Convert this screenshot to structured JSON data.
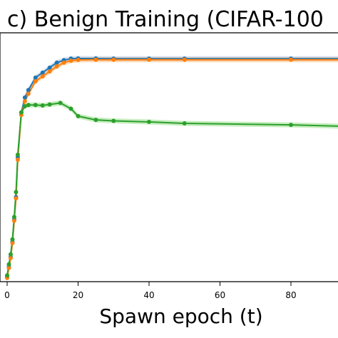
{
  "chart_data": {
    "type": "line",
    "title": "c) Benign Training (CIFAR-100",
    "xlabel": "Spawn epoch (t)",
    "ylabel": "",
    "xlim": [
      -1.5,
      96
    ],
    "ylim": [
      0,
      100
    ],
    "grid": false,
    "x_ticks": [
      0,
      20,
      40,
      60,
      80
    ],
    "series": [
      {
        "color": "#1f77b4",
        "band_color": "#aec7e8",
        "x": [
          0,
          0.5,
          1,
          1.5,
          2,
          2.5,
          3,
          4,
          5,
          6,
          8,
          10,
          12,
          14,
          16,
          18,
          20,
          25,
          30,
          40,
          50,
          80,
          96
        ],
        "y": [
          2,
          6,
          10,
          16,
          25,
          34,
          50,
          68,
          74,
          77,
          82,
          84,
          86,
          88,
          89,
          89.6,
          89.7,
          89.7,
          89.6,
          89.6,
          89.6,
          89.6,
          89.6
        ]
      },
      {
        "color": "#ff7f0e",
        "band_color": "#ffbb78",
        "x": [
          0,
          0.5,
          1,
          1.5,
          2,
          2.5,
          3,
          4,
          5,
          6,
          8,
          10,
          12,
          14,
          16,
          18,
          20,
          25,
          30,
          40,
          50,
          80,
          96
        ],
        "y": [
          1.5,
          5.5,
          9.5,
          15.5,
          24.5,
          33.5,
          49,
          67,
          72.5,
          75.5,
          80.5,
          82.5,
          84.5,
          86.5,
          88,
          88.8,
          89.1,
          89.2,
          89.2,
          89.2,
          89.2,
          89.2,
          89.2
        ]
      },
      {
        "color": "#2ca02c",
        "band_color": "#98df8a",
        "x": [
          0,
          0.5,
          1,
          1.5,
          2,
          2.5,
          3,
          4,
          5,
          6,
          8,
          10,
          12,
          15,
          18,
          20,
          25,
          30,
          40,
          50,
          80,
          96
        ],
        "y": [
          2.5,
          7,
          11,
          17,
          26,
          36,
          51,
          68,
          70.5,
          71,
          71,
          70.8,
          71.2,
          71.8,
          69.5,
          66.5,
          65,
          64.6,
          64.2,
          63.6,
          63,
          62.4
        ]
      }
    ]
  }
}
